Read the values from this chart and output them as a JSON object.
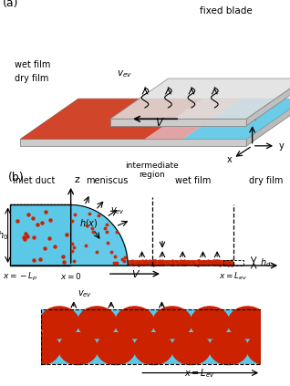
{
  "fig_width": 3.18,
  "fig_height": 4.23,
  "dpi": 100,
  "bg_color": "#ffffff",
  "cyan_color": "#5BC8E8",
  "red_color": "#CC2200",
  "light_red": "#E87060",
  "blade_color": "#DCDCDC",
  "blade_edge": "#999999",
  "panel_a_label": "(a)",
  "panel_b_label": "(b)",
  "fixed_blade_label": "fixed blade",
  "wet_film_label": "wet film",
  "dry_film_label": "dry film",
  "inlet_duct_label": "inlet duct",
  "meniscus_label": "meniscus",
  "intermediate_label": "intermediate\nregion"
}
